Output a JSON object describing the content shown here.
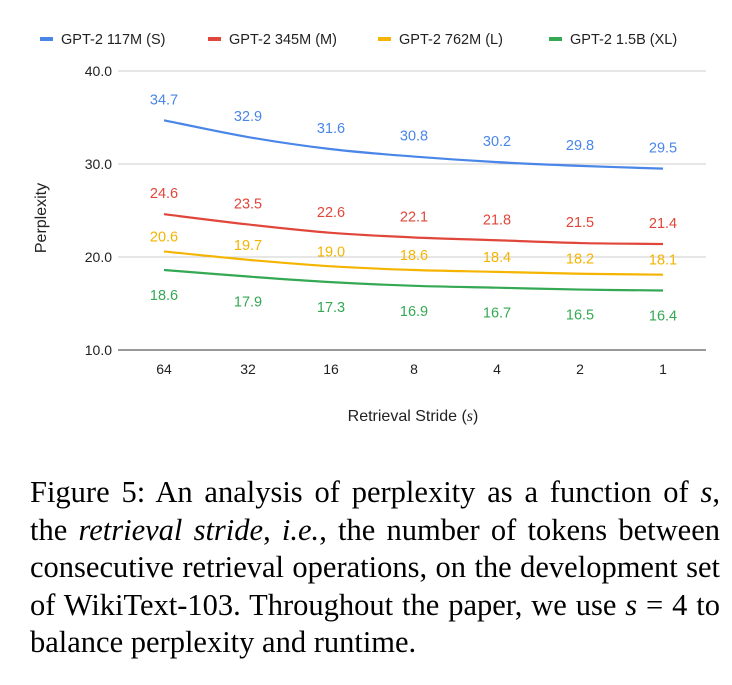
{
  "chart_data": {
    "type": "line",
    "categories": [
      "64",
      "32",
      "16",
      "8",
      "4",
      "2",
      "1"
    ],
    "series": [
      {
        "name": "GPT-2 117M (S)",
        "color": "#4a86e8",
        "values": [
          34.7,
          32.9,
          31.6,
          30.8,
          30.2,
          29.8,
          29.5
        ],
        "labels": [
          "34.7",
          "32.9",
          "31.6",
          "30.8",
          "30.2",
          "29.8",
          "29.5"
        ]
      },
      {
        "name": "GPT-2 345M (M)",
        "color": "#e0463a",
        "values": [
          24.6,
          23.5,
          22.6,
          22.1,
          21.8,
          21.5,
          21.4
        ],
        "labels": [
          "24.6",
          "23.5",
          "22.6",
          "22.1",
          "21.8",
          "21.5",
          "21.4"
        ]
      },
      {
        "name": "GPT-2 762M (L)",
        "color": "#f4b400",
        "values": [
          20.6,
          19.7,
          19.0,
          18.6,
          18.4,
          18.2,
          18.1
        ],
        "labels": [
          "20.6",
          "19.7",
          "19.0",
          "18.6",
          "18.4",
          "18.2",
          "18.1"
        ]
      },
      {
        "name": "GPT-2 1.5B (XL)",
        "color": "#34a853",
        "values": [
          18.6,
          17.9,
          17.3,
          16.9,
          16.7,
          16.5,
          16.4
        ],
        "labels": [
          "18.6",
          "17.9",
          "17.3",
          "16.9",
          "16.7",
          "16.5",
          "16.4"
        ]
      }
    ],
    "xlabel_text": "Retrieval Stride (",
    "xlabel_var": "s",
    "xlabel_close": ")",
    "ylabel": "Perplexity",
    "ylim": [
      10,
      40
    ],
    "yticks": [
      {
        "value": 10,
        "label": "10.0"
      },
      {
        "value": 20,
        "label": "20.0"
      },
      {
        "value": 30,
        "label": "30.0"
      },
      {
        "value": 40,
        "label": "40.0"
      }
    ],
    "grid": true,
    "legend_position": "top"
  },
  "caption": {
    "p1": "Figure 5: An analysis of perplexity as a function of ",
    "s1": "s",
    "p2": ", the ",
    "i1": "retrieval stride",
    "p3": ", ",
    "i2": "i.e.",
    "p4": ", the number of tokens between consecutive retrieval operations, on the development set of WikiText-103. Throughout the paper, we use ",
    "s2": "s",
    "p5": " = 4 to balance perplexity and runtime."
  }
}
